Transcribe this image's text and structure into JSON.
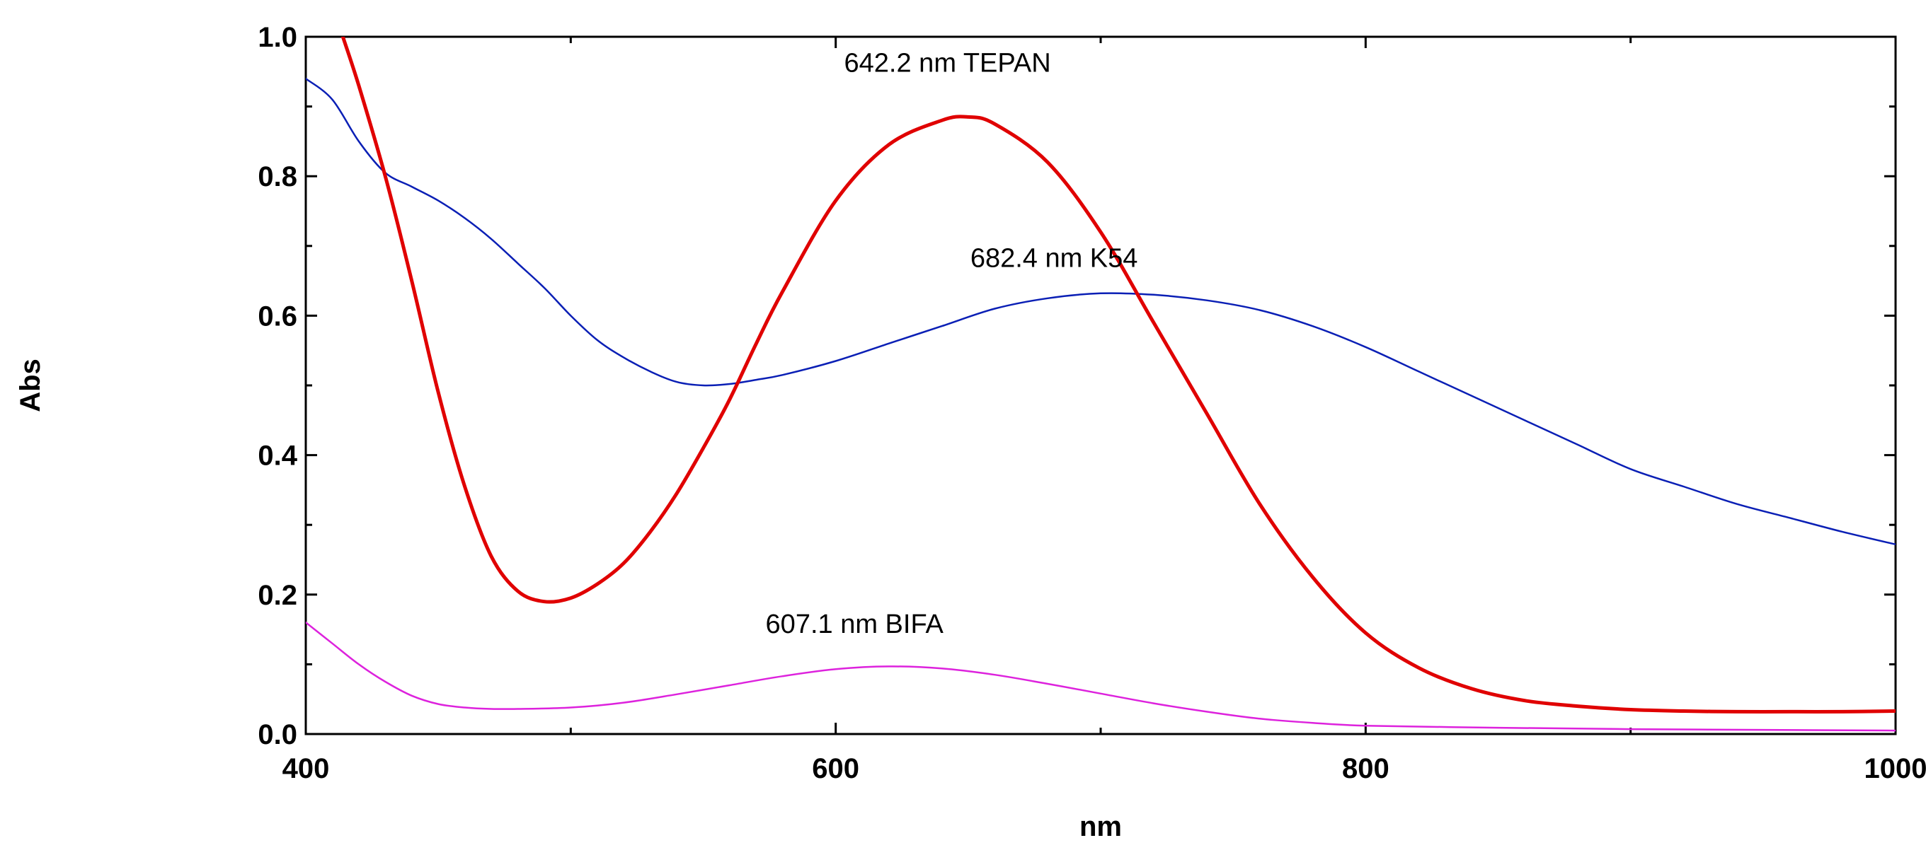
{
  "chart_data": {
    "type": "line",
    "title": "",
    "xlabel": "nm",
    "ylabel": "Abs",
    "xlim": [
      400,
      1000
    ],
    "ylim": [
      0.0,
      1.0
    ],
    "x_ticks": [
      400,
      600,
      800,
      1000
    ],
    "x_tick_labels": [
      "400",
      "600",
      "800",
      "1000"
    ],
    "y_ticks": [
      0.0,
      0.2,
      0.4,
      0.6,
      0.8,
      1.0
    ],
    "y_tick_labels": [
      "0.0",
      "0.2",
      "0.4",
      "0.6",
      "0.8",
      "1.0"
    ],
    "grid": false,
    "series": [
      {
        "name": "K54",
        "color": "#0a1fb5",
        "points": [
          [
            400,
            0.94
          ],
          [
            410,
            0.91
          ],
          [
            420,
            0.85
          ],
          [
            430,
            0.805
          ],
          [
            440,
            0.785
          ],
          [
            450,
            0.765
          ],
          [
            460,
            0.74
          ],
          [
            470,
            0.71
          ],
          [
            480,
            0.675
          ],
          [
            490,
            0.64
          ],
          [
            500,
            0.6
          ],
          [
            510,
            0.565
          ],
          [
            520,
            0.54
          ],
          [
            530,
            0.52
          ],
          [
            540,
            0.505
          ],
          [
            550,
            0.5
          ],
          [
            560,
            0.502
          ],
          [
            570,
            0.508
          ],
          [
            580,
            0.515
          ],
          [
            600,
            0.535
          ],
          [
            620,
            0.56
          ],
          [
            640,
            0.585
          ],
          [
            660,
            0.61
          ],
          [
            680,
            0.625
          ],
          [
            700,
            0.632
          ],
          [
            720,
            0.63
          ],
          [
            740,
            0.622
          ],
          [
            760,
            0.608
          ],
          [
            780,
            0.585
          ],
          [
            800,
            0.555
          ],
          [
            820,
            0.52
          ],
          [
            840,
            0.485
          ],
          [
            860,
            0.45
          ],
          [
            880,
            0.415
          ],
          [
            900,
            0.38
          ],
          [
            920,
            0.355
          ],
          [
            940,
            0.33
          ],
          [
            960,
            0.31
          ],
          [
            980,
            0.29
          ],
          [
            1000,
            0.272
          ]
        ]
      },
      {
        "name": "TEPAN",
        "color": "#e00000",
        "points": [
          [
            414,
            1.0
          ],
          [
            420,
            0.93
          ],
          [
            430,
            0.8
          ],
          [
            440,
            0.65
          ],
          [
            450,
            0.49
          ],
          [
            460,
            0.355
          ],
          [
            470,
            0.255
          ],
          [
            480,
            0.205
          ],
          [
            490,
            0.19
          ],
          [
            500,
            0.195
          ],
          [
            510,
            0.215
          ],
          [
            520,
            0.245
          ],
          [
            530,
            0.29
          ],
          [
            540,
            0.345
          ],
          [
            550,
            0.41
          ],
          [
            560,
            0.48
          ],
          [
            570,
            0.56
          ],
          [
            580,
            0.635
          ],
          [
            600,
            0.765
          ],
          [
            620,
            0.845
          ],
          [
            640,
            0.88
          ],
          [
            650,
            0.885
          ],
          [
            660,
            0.875
          ],
          [
            680,
            0.82
          ],
          [
            700,
            0.72
          ],
          [
            720,
            0.59
          ],
          [
            740,
            0.46
          ],
          [
            760,
            0.33
          ],
          [
            780,
            0.225
          ],
          [
            800,
            0.145
          ],
          [
            820,
            0.095
          ],
          [
            840,
            0.065
          ],
          [
            860,
            0.048
          ],
          [
            880,
            0.04
          ],
          [
            900,
            0.035
          ],
          [
            920,
            0.033
          ],
          [
            940,
            0.032
          ],
          [
            960,
            0.032
          ],
          [
            980,
            0.032
          ],
          [
            1000,
            0.033
          ]
        ]
      },
      {
        "name": "BIFA",
        "color": "#dd22dd",
        "points": [
          [
            400,
            0.16
          ],
          [
            410,
            0.13
          ],
          [
            420,
            0.1
          ],
          [
            430,
            0.075
          ],
          [
            440,
            0.055
          ],
          [
            450,
            0.043
          ],
          [
            460,
            0.038
          ],
          [
            470,
            0.036
          ],
          [
            480,
            0.036
          ],
          [
            500,
            0.038
          ],
          [
            520,
            0.045
          ],
          [
            540,
            0.057
          ],
          [
            560,
            0.07
          ],
          [
            580,
            0.083
          ],
          [
            600,
            0.093
          ],
          [
            620,
            0.097
          ],
          [
            640,
            0.094
          ],
          [
            660,
            0.085
          ],
          [
            680,
            0.072
          ],
          [
            700,
            0.058
          ],
          [
            720,
            0.044
          ],
          [
            740,
            0.032
          ],
          [
            760,
            0.022
          ],
          [
            780,
            0.016
          ],
          [
            800,
            0.012
          ],
          [
            850,
            0.009
          ],
          [
            900,
            0.007
          ],
          [
            950,
            0.006
          ],
          [
            1000,
            0.005
          ]
        ]
      }
    ],
    "annotations": [
      {
        "text": "642.2 nm TEPAN",
        "x": 642.2,
        "y": 0.95
      },
      {
        "text": "682.4 nm K54",
        "x": 682.4,
        "y": 0.67
      },
      {
        "text": "607.1 nm BIFA",
        "x": 607.1,
        "y": 0.145
      }
    ]
  }
}
